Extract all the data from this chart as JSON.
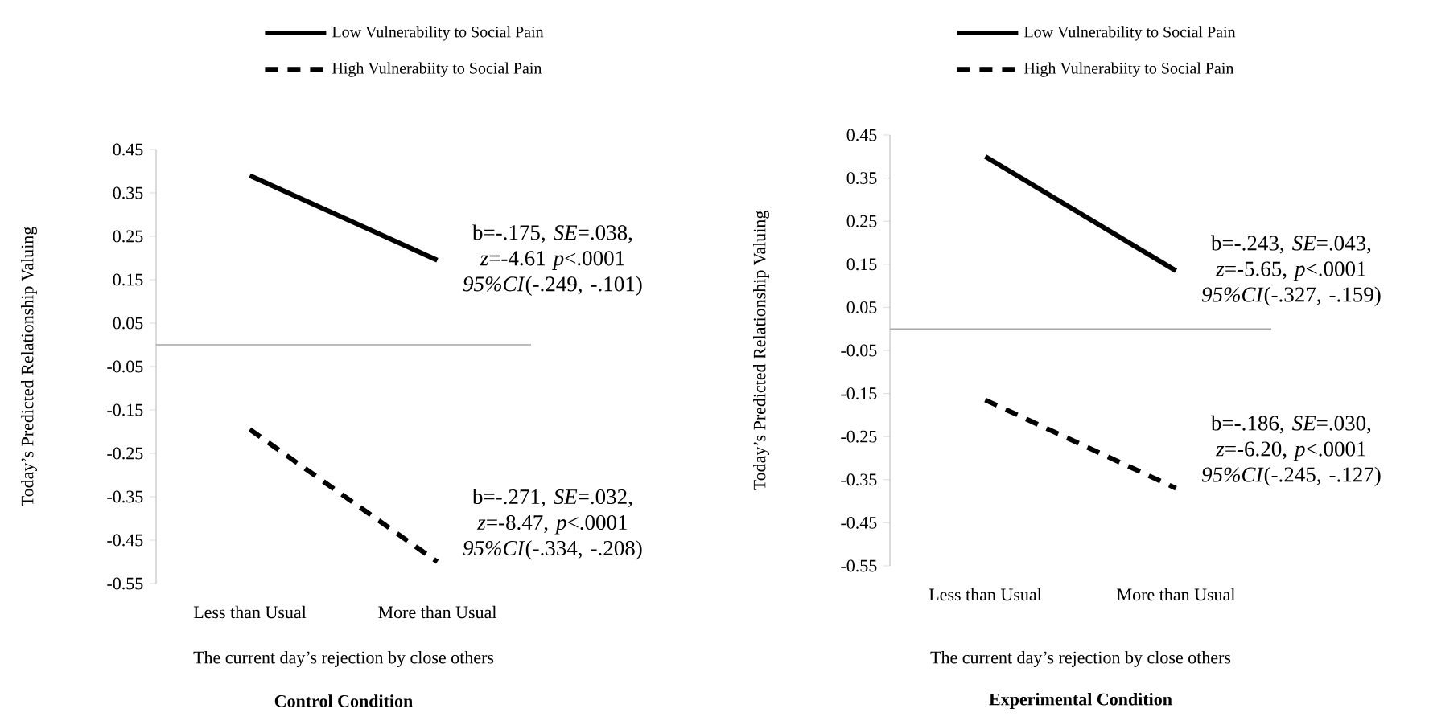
{
  "chart_data": [
    {
      "type": "line",
      "title": "**Control Condition**",
      "xlabel": "The current day’s rejection by close others",
      "ylabel": "Today’s Predicted Relationship Valuing",
      "categories": [
        "Less than Usual",
        "More than Usual"
      ],
      "series": [
        {
          "name": "Low Vulnerability to Social Pain",
          "color": "#000000",
          "line_style": "solid",
          "values": [
            0.39,
            0.195
          ]
        },
        {
          "name": "High Vulnerabiity to Social Pain",
          "color": "#000000",
          "line_style": "dashed",
          "values": [
            -0.195,
            -0.5
          ]
        }
      ],
      "ylim": [
        -0.55,
        0.45
      ],
      "yticks": [
        -0.55,
        -0.45,
        -0.35,
        -0.25,
        -0.15,
        -0.05,
        0.05,
        0.15,
        0.25,
        0.35,
        0.45
      ],
      "ref_lines": [
        {
          "axis": "y",
          "value": 0,
          "color": "#a6a6a6"
        }
      ],
      "legend": "top",
      "annotations": [
        "b=-.175, *SE*=.038, *z*=-4.61 *p*<.0001 *95%CI*(-.249, -.101)",
        "b=-.271, *SE*=.032, *z*=-8.47, *p*<.0001 *95%CI*(-.334, -.208)"
      ]
    },
    {
      "type": "line",
      "title": "**Experimental Condition**",
      "xlabel": "The current day’s rejection by close others",
      "ylabel": "Today’s Predicted Relationship Valuing",
      "categories": [
        "Less than Usual",
        "More than Usual"
      ],
      "series": [
        {
          "name": "Low Vulnerability to Social Pain",
          "color": "#000000",
          "line_style": "solid",
          "values": [
            0.4,
            0.135
          ]
        },
        {
          "name": "High Vulnerabiity to Social Pain",
          "color": "#000000",
          "line_style": "dashed",
          "values": [
            -0.165,
            -0.37
          ]
        }
      ],
      "ylim": [
        -0.55,
        0.45
      ],
      "yticks": [
        -0.55,
        -0.45,
        -0.35,
        -0.25,
        -0.15,
        -0.05,
        0.05,
        0.15,
        0.25,
        0.35,
        0.45
      ],
      "ref_lines": [
        {
          "axis": "y",
          "value": 0,
          "color": "#a6a6a6"
        }
      ],
      "legend": "top",
      "annotations": [
        "b=-.243, *SE*=.043, *z*=-5.65, *p*<.0001 *95%CI*(-.327, -.159)",
        "b=-.186, *SE*=.030, *z*=-6.20, *p*<.0001 *95%CI*(-.245, -.127)"
      ]
    }
  ]
}
